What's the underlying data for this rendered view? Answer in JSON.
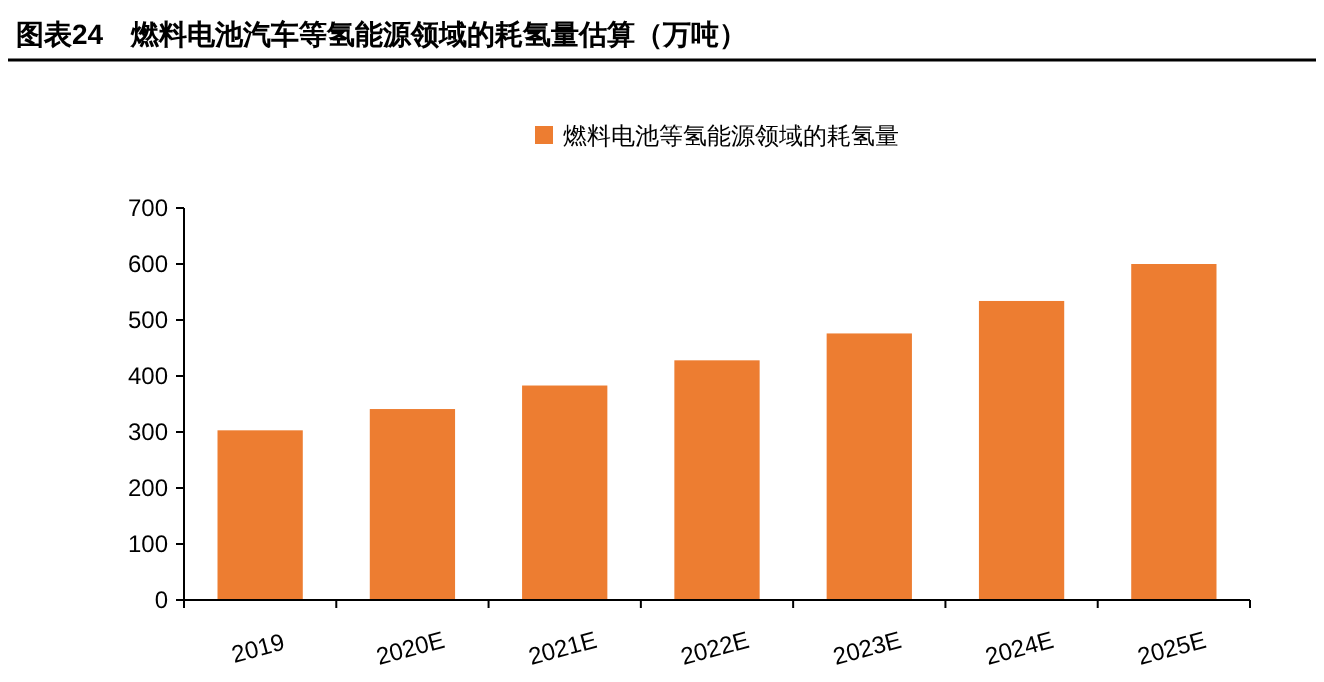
{
  "chart_data": {
    "type": "bar",
    "title": "图表24　燃料电池汽车等氢能源领域的耗氢量估算（万吨）",
    "categories": [
      "2019",
      "2020E",
      "2021E",
      "2022E",
      "2023E",
      "2024E",
      "2025E"
    ],
    "series": [
      {
        "name": "燃料电池等氢能源领域的耗氢量",
        "color": "#ed7d31",
        "values": [
          303,
          341,
          383,
          428,
          476,
          534,
          600
        ]
      }
    ],
    "ylim": [
      0,
      700
    ],
    "yticks": [
      0,
      100,
      200,
      300,
      400,
      500,
      600,
      700
    ],
    "grid": false,
    "legend": "top"
  }
}
